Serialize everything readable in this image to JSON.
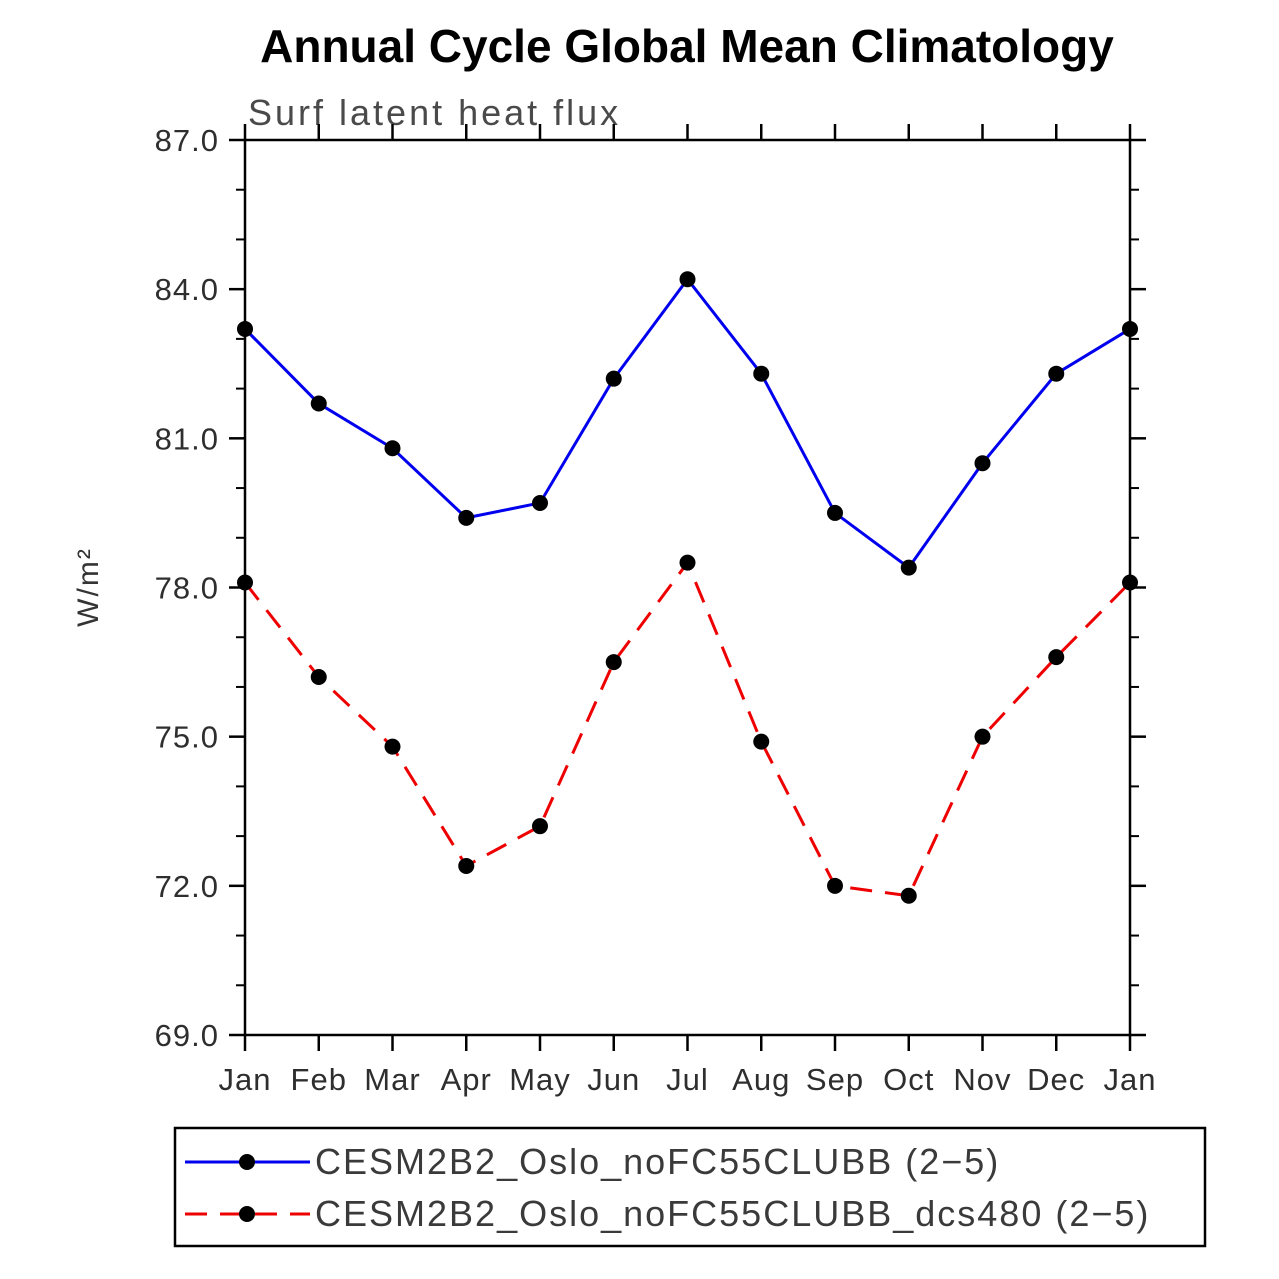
{
  "page": {
    "title": "Annual Cycle Global Mean Climatology"
  },
  "chart_data": {
    "type": "line",
    "title": "Annual Cycle Global Mean Climatology",
    "subtitle": "Surf latent heat flux",
    "ylabel": "W/m²",
    "xlabel": "",
    "categories": [
      "Jan",
      "Feb",
      "Mar",
      "Apr",
      "May",
      "Jun",
      "Jul",
      "Aug",
      "Sep",
      "Oct",
      "Nov",
      "Dec",
      "Jan"
    ],
    "ylim": [
      69.0,
      87.0
    ],
    "yticks": [
      69.0,
      72.0,
      75.0,
      78.0,
      81.0,
      84.0,
      87.0
    ],
    "yminor_step": 1.0,
    "grid": false,
    "legend_position": "bottom",
    "marker_color": "#000000",
    "axis_color": "#000000",
    "series": [
      {
        "name": "CESM2B2_Oslo_noFC55CLUBB (2−5)",
        "color": "#0000ee",
        "style": "solid",
        "values": [
          83.2,
          81.7,
          80.8,
          79.4,
          79.7,
          82.2,
          84.2,
          82.3,
          79.5,
          78.4,
          80.5,
          82.3,
          83.2
        ]
      },
      {
        "name": "CESM2B2_Oslo_noFC55CLUBB_dcs480 (2−5)",
        "color": "#ee0000",
        "style": "dashed",
        "values": [
          78.1,
          76.2,
          74.8,
          72.4,
          73.2,
          76.5,
          78.5,
          74.9,
          72.0,
          71.8,
          75.0,
          76.6,
          78.1
        ]
      }
    ]
  }
}
